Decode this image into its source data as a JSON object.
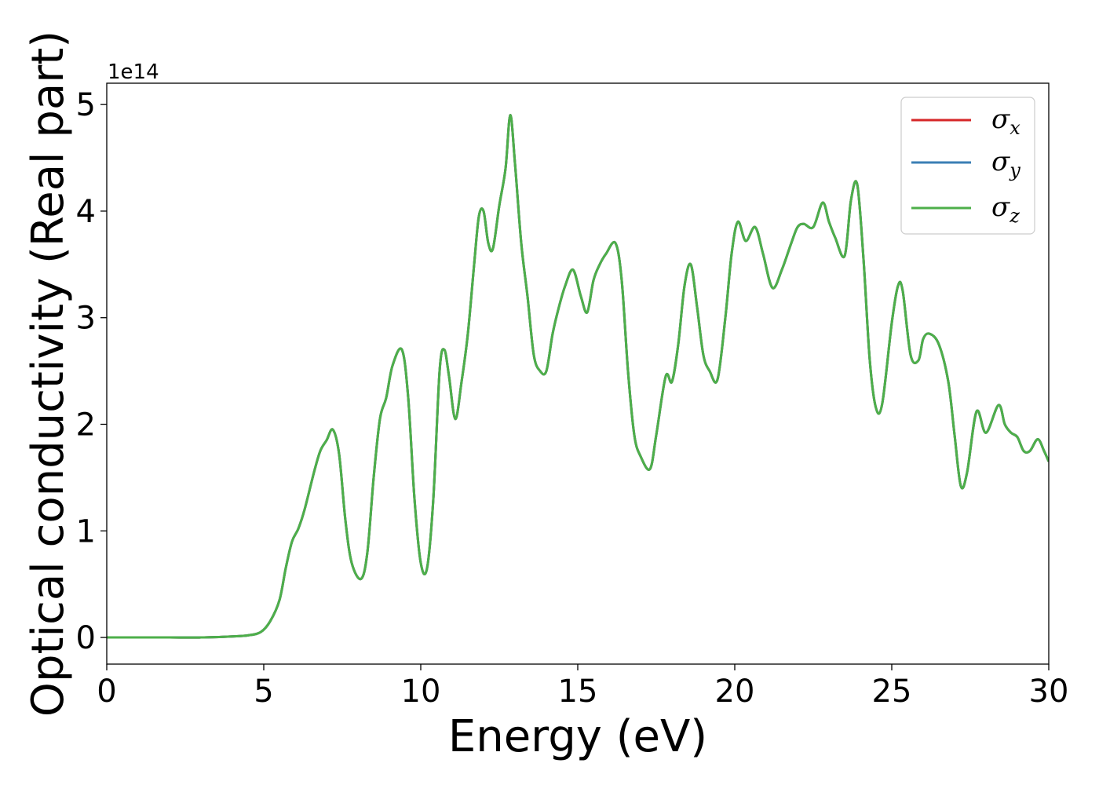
{
  "chart_data": {
    "type": "line",
    "xlabel": "Energy (eV)",
    "ylabel": "Optical conductivity (Real part)",
    "y_offset_label": "1e14",
    "xlim": [
      0,
      30
    ],
    "ylim": [
      -0.25,
      5.2
    ],
    "xticks": [
      0,
      5,
      10,
      15,
      20,
      25,
      30
    ],
    "yticks": [
      0,
      1,
      2,
      3,
      4,
      5
    ],
    "legend_position": "top-right",
    "grid": false,
    "series": [
      {
        "name": "σ",
        "subscript": "x",
        "color": "#d62728"
      },
      {
        "name": "σ",
        "subscript": "y",
        "color": "#3b7fb5"
      },
      {
        "name": "σ",
        "subscript": "z",
        "color": "#4daf4a"
      }
    ],
    "x": [
      0,
      1,
      2,
      3,
      4,
      4.5,
      4.9,
      5.2,
      5.5,
      5.7,
      5.9,
      6.1,
      6.3,
      6.6,
      6.8,
      7.0,
      7.2,
      7.4,
      7.6,
      7.8,
      8.1,
      8.3,
      8.5,
      8.7,
      8.9,
      9.1,
      9.4,
      9.6,
      9.8,
      10.0,
      10.2,
      10.4,
      10.6,
      10.75,
      10.9,
      11.1,
      11.3,
      11.5,
      11.7,
      11.85,
      12.0,
      12.15,
      12.3,
      12.5,
      12.7,
      12.85,
      13.0,
      13.2,
      13.4,
      13.6,
      13.8,
      14.0,
      14.2,
      14.4,
      14.6,
      14.85,
      15.1,
      15.3,
      15.5,
      15.7,
      15.9,
      16.2,
      16.4,
      16.6,
      16.8,
      17.0,
      17.3,
      17.5,
      17.8,
      18.0,
      18.2,
      18.4,
      18.6,
      18.8,
      19.0,
      19.2,
      19.45,
      19.7,
      19.9,
      20.1,
      20.35,
      20.65,
      20.9,
      21.2,
      21.5,
      21.8,
      22.0,
      22.2,
      22.5,
      22.8,
      23.0,
      23.2,
      23.5,
      23.7,
      23.9,
      24.1,
      24.3,
      24.5,
      24.7,
      25.0,
      25.2,
      25.35,
      25.6,
      25.85,
      26.0,
      26.2,
      26.5,
      26.8,
      27.0,
      27.2,
      27.4,
      27.7,
      28.0,
      28.4,
      28.6,
      28.8,
      29.0,
      29.2,
      29.4,
      29.65,
      29.85,
      30.0
    ],
    "values": [
      0.0,
      0.0,
      0.0,
      0.0,
      0.01,
      0.02,
      0.05,
      0.15,
      0.35,
      0.65,
      0.9,
      1.02,
      1.2,
      1.55,
      1.75,
      1.85,
      1.95,
      1.72,
      1.1,
      0.7,
      0.55,
      0.8,
      1.5,
      2.05,
      2.25,
      2.55,
      2.7,
      2.25,
      1.3,
      0.7,
      0.65,
      1.3,
      2.5,
      2.7,
      2.45,
      2.05,
      2.4,
      2.85,
      3.5,
      3.95,
      4.0,
      3.7,
      3.65,
      4.05,
      4.4,
      4.9,
      4.45,
      3.7,
      3.2,
      2.65,
      2.5,
      2.5,
      2.85,
      3.1,
      3.3,
      3.45,
      3.2,
      3.05,
      3.35,
      3.5,
      3.6,
      3.7,
      3.35,
      2.5,
      1.9,
      1.7,
      1.58,
      1.9,
      2.45,
      2.4,
      2.75,
      3.3,
      3.5,
      3.1,
      2.65,
      2.5,
      2.42,
      3.0,
      3.6,
      3.9,
      3.72,
      3.85,
      3.6,
      3.28,
      3.45,
      3.7,
      3.85,
      3.88,
      3.85,
      4.08,
      3.9,
      3.75,
      3.58,
      4.1,
      4.25,
      3.55,
      2.6,
      2.15,
      2.2,
      2.95,
      3.3,
      3.25,
      2.65,
      2.6,
      2.8,
      2.85,
      2.75,
      2.4,
      1.9,
      1.42,
      1.55,
      2.12,
      1.92,
      2.18,
      2.0,
      1.92,
      1.88,
      1.75,
      1.75,
      1.86,
      1.75,
      1.65
    ]
  }
}
